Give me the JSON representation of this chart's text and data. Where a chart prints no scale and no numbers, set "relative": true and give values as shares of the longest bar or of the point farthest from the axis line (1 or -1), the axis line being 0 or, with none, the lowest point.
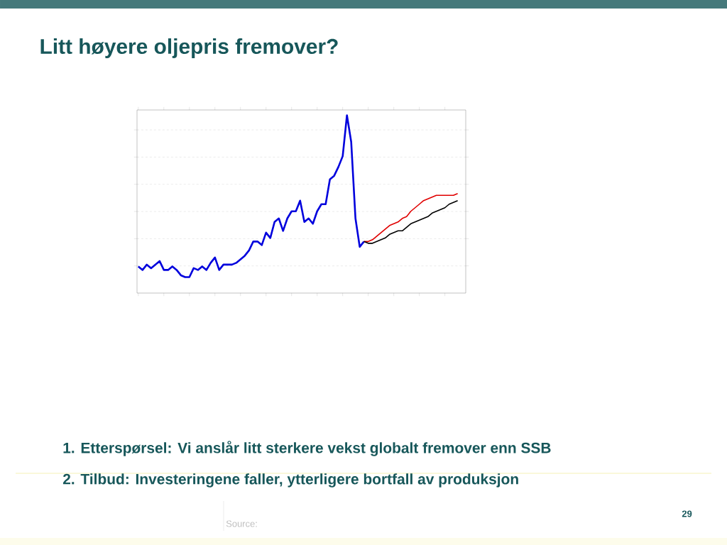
{
  "chart_data": {
    "type": "line",
    "title": "Litt høyere oljepris fremover?",
    "relative": true,
    "grid": "y",
    "tick_labels": false,
    "categories": [
      null,
      null,
      null,
      null,
      null,
      null,
      null,
      null,
      null,
      null,
      null,
      null,
      null,
      null,
      null,
      null,
      null,
      null,
      null,
      null,
      null,
      null,
      null,
      null,
      null,
      null,
      null,
      null,
      null,
      null,
      null,
      null,
      null,
      null,
      null,
      null,
      null,
      null,
      null,
      null,
      null,
      null,
      null,
      null,
      null,
      null,
      null,
      null,
      null,
      null,
      null,
      null,
      null,
      null,
      null,
      null,
      null,
      null,
      null,
      null,
      null,
      null,
      null,
      null,
      null,
      null,
      null,
      null,
      null,
      null,
      null,
      null,
      null,
      null,
      null,
      null
    ],
    "series": [
      {
        "color": "#0000dd",
        "values": [
          0.15,
          0.13,
          0.16,
          0.14,
          0.16,
          0.18,
          0.13,
          0.13,
          0.15,
          0.13,
          0.1,
          0.09,
          0.09,
          0.14,
          0.13,
          0.15,
          0.13,
          0.17,
          0.2,
          0.13,
          0.16,
          0.16,
          0.16,
          0.17,
          0.19,
          0.21,
          0.24,
          0.29,
          0.29,
          0.27,
          0.34,
          0.31,
          0.4,
          0.42,
          0.35,
          0.42,
          0.46,
          0.46,
          0.52,
          0.4,
          0.42,
          0.39,
          0.46,
          0.5,
          0.5,
          0.64,
          0.66,
          0.71,
          0.77,
          1.0,
          0.85,
          0.42,
          0.26,
          0.29,
          null,
          null,
          null,
          null,
          null,
          null,
          null,
          null,
          null,
          null,
          null,
          null,
          null,
          null,
          null,
          null,
          null,
          null,
          null,
          null,
          null,
          null
        ]
      },
      {
        "color": "#e00000",
        "values": [
          null,
          null,
          null,
          null,
          null,
          null,
          null,
          null,
          null,
          null,
          null,
          null,
          null,
          null,
          null,
          null,
          null,
          null,
          null,
          null,
          null,
          null,
          null,
          null,
          null,
          null,
          null,
          null,
          null,
          null,
          null,
          null,
          null,
          null,
          null,
          null,
          null,
          null,
          null,
          null,
          null,
          null,
          null,
          null,
          null,
          null,
          null,
          null,
          null,
          null,
          null,
          null,
          null,
          0.29,
          0.29,
          0.3,
          0.32,
          0.34,
          0.36,
          0.38,
          0.39,
          0.4,
          0.42,
          0.43,
          0.46,
          0.48,
          0.5,
          0.52,
          0.53,
          0.54,
          0.55,
          0.55,
          0.55,
          0.55,
          0.55,
          0.56
        ]
      },
      {
        "color": "#000000",
        "values": [
          null,
          null,
          null,
          null,
          null,
          null,
          null,
          null,
          null,
          null,
          null,
          null,
          null,
          null,
          null,
          null,
          null,
          null,
          null,
          null,
          null,
          null,
          null,
          null,
          null,
          null,
          null,
          null,
          null,
          null,
          null,
          null,
          null,
          null,
          null,
          null,
          null,
          null,
          null,
          null,
          null,
          null,
          null,
          null,
          null,
          null,
          null,
          null,
          null,
          null,
          null,
          null,
          null,
          0.29,
          0.28,
          0.28,
          0.29,
          0.3,
          0.31,
          0.33,
          0.34,
          0.35,
          0.35,
          0.37,
          0.39,
          0.4,
          0.41,
          0.42,
          0.43,
          0.45,
          0.46,
          0.47,
          0.48,
          0.5,
          0.51,
          0.52
        ]
      }
    ],
    "annotations": [
      "1.  Etterspørsel: Vi anslår litt sterkere vekst globalt fremover enn SSB",
      "2.  Tilbud: Investeringene faller, ytterligere bortfall av produksjon",
      "Source:",
      "29"
    ]
  }
}
